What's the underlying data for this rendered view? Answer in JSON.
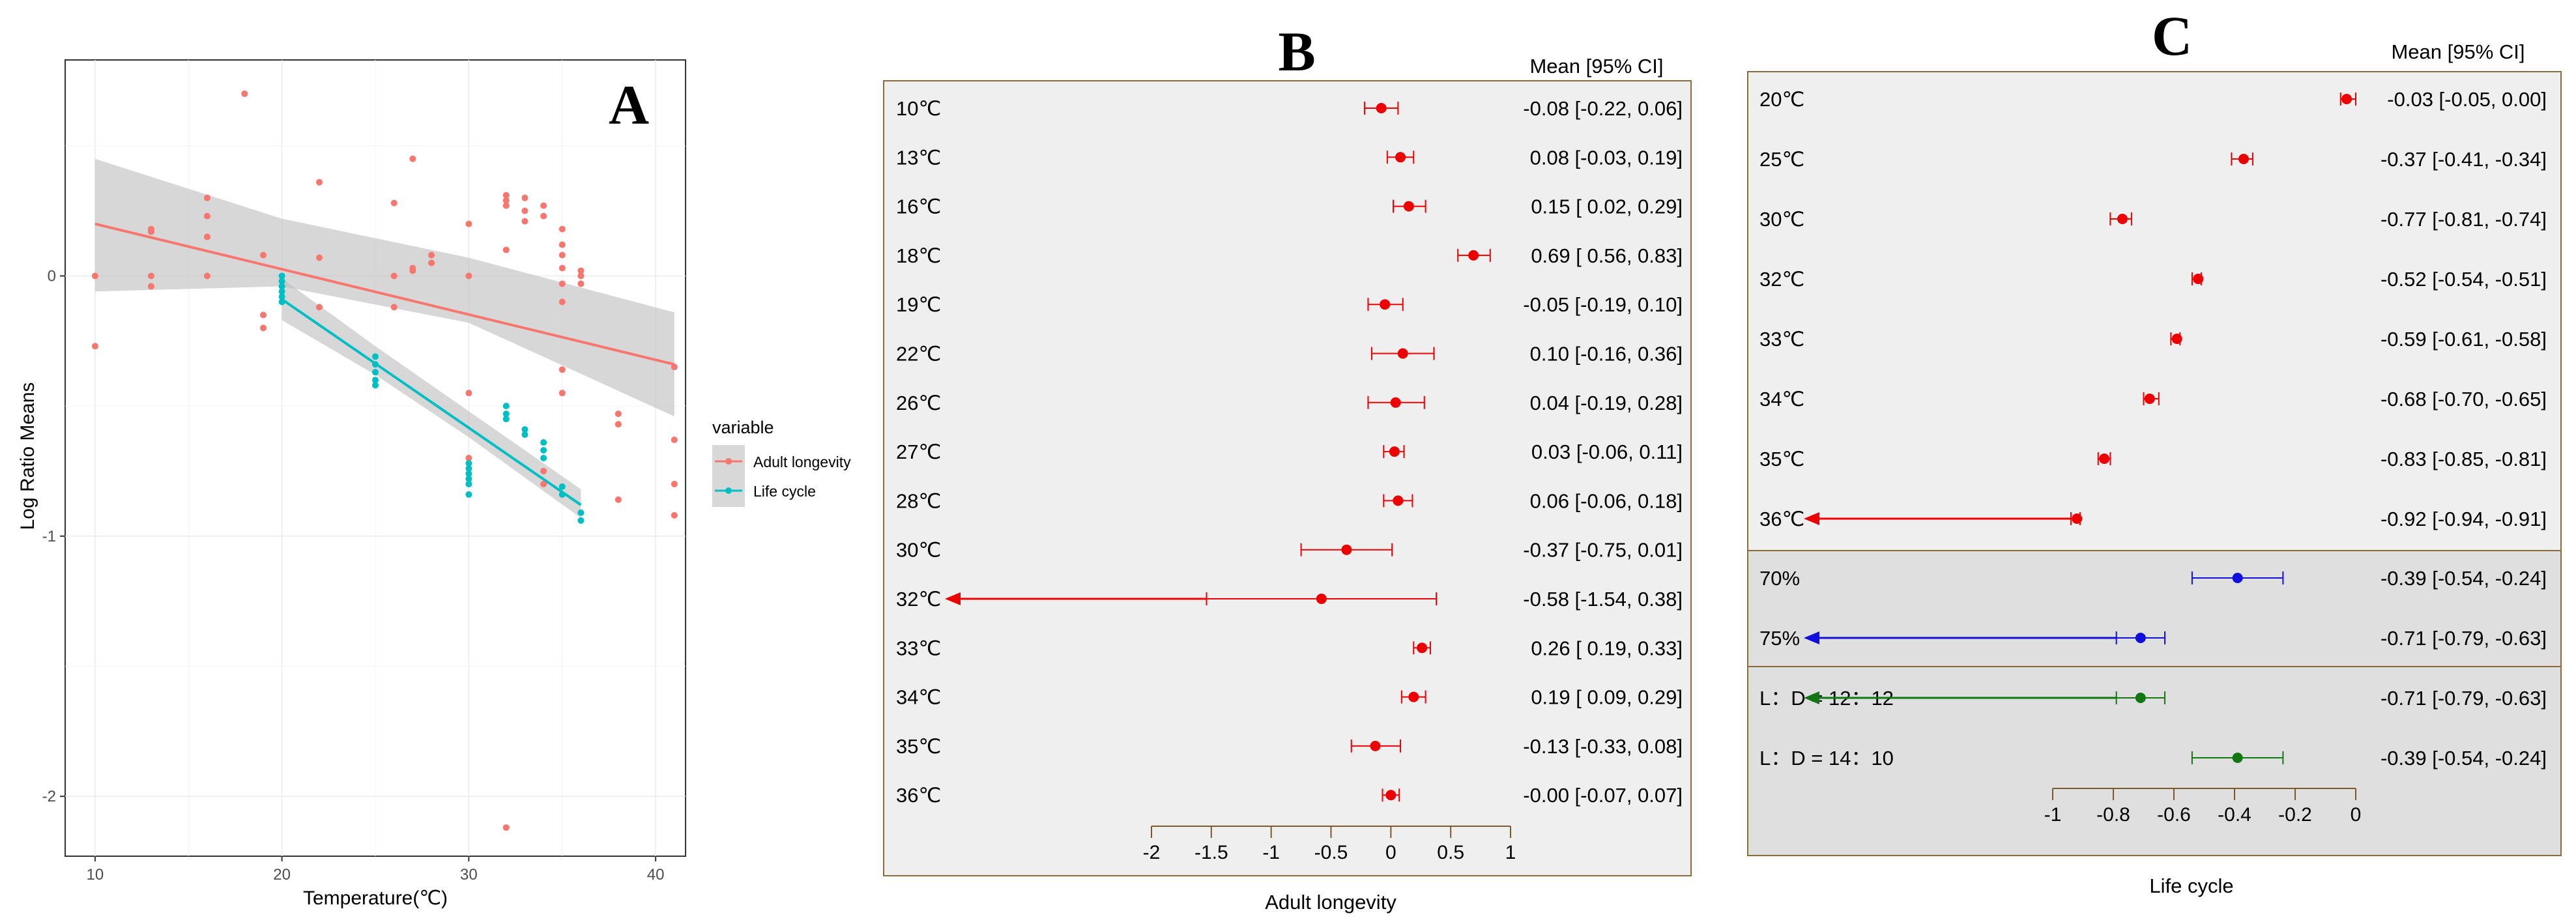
{
  "colors": {
    "adult": "#F8766D",
    "life": "#00BFC4",
    "red": "#EE0000",
    "blue": "#1010DD",
    "green": "#117711",
    "panel_bg": "#EFEFEF",
    "panel_bg2": "#DFDFDF",
    "frame": "#8B6B3A"
  },
  "chart_data": [
    {
      "type": "scatter",
      "panel_label": "A",
      "xlabel": "Temperature(℃)",
      "ylabel": "Log Ratio Means",
      "xlim": [
        8.4,
        41.6
      ],
      "ylim": [
        -2.23,
        0.83
      ],
      "x_ticks": [
        10,
        20,
        30,
        40
      ],
      "x_tick_labels": [
        "10",
        "20",
        "30",
        "40"
      ],
      "y_ticks": [
        0,
        -1,
        -2
      ],
      "y_tick_labels": [
        "0",
        "-1",
        "-2"
      ],
      "grid": true,
      "legend": {
        "title": "variable",
        "placement": "right",
        "entries": [
          "Adult longevity",
          "Life cycle"
        ]
      },
      "series": [
        {
          "name": "Adult longevity",
          "points": [
            [
              10,
              0.0
            ],
            [
              10,
              -0.27
            ],
            [
              13,
              0.18
            ],
            [
              13,
              0.17
            ],
            [
              13,
              -0.04
            ],
            [
              13,
              0.0
            ],
            [
              16,
              0.3
            ],
            [
              16,
              0.23
            ],
            [
              16,
              0.15
            ],
            [
              16,
              0.0
            ],
            [
              18,
              0.7
            ],
            [
              19,
              0.08
            ],
            [
              19,
              -0.15
            ],
            [
              19,
              -0.2
            ],
            [
              22,
              0.36
            ],
            [
              22,
              0.07
            ],
            [
              22,
              -0.12
            ],
            [
              26,
              0.28
            ],
            [
              26,
              0.0
            ],
            [
              26,
              -0.12
            ],
            [
              27,
              0.45
            ],
            [
              27,
              0.03
            ],
            [
              27,
              0.02
            ],
            [
              28,
              0.08
            ],
            [
              28,
              0.05
            ],
            [
              30,
              0.0
            ],
            [
              30,
              -0.45
            ],
            [
              30,
              -0.7
            ],
            [
              30,
              0.2
            ],
            [
              32,
              0.31
            ],
            [
              32,
              0.29
            ],
            [
              32,
              0.27
            ],
            [
              32,
              0.1
            ],
            [
              32,
              -2.12
            ],
            [
              33,
              0.3
            ],
            [
              33,
              0.25
            ],
            [
              33,
              0.21
            ],
            [
              34,
              0.27
            ],
            [
              34,
              0.23
            ],
            [
              34,
              -0.75
            ],
            [
              34,
              -0.8
            ],
            [
              35,
              0.18
            ],
            [
              35,
              0.12
            ],
            [
              35,
              0.08
            ],
            [
              35,
              0.03
            ],
            [
              35,
              -0.03
            ],
            [
              35,
              -0.1
            ],
            [
              35,
              -0.36
            ],
            [
              35,
              -0.45
            ],
            [
              36,
              0.02
            ],
            [
              36,
              0.0
            ],
            [
              36,
              -0.03
            ],
            [
              38,
              -0.53
            ],
            [
              38,
              -0.57
            ],
            [
              38,
              -0.86
            ],
            [
              41,
              -0.63
            ],
            [
              41,
              -0.8
            ],
            [
              41,
              -0.92
            ],
            [
              41,
              -0.35
            ]
          ],
          "trend": [
            [
              10,
              0.2
            ],
            [
              41,
              -0.34
            ]
          ],
          "ci_band": {
            "x": [
              10,
              20,
              30,
              41
            ],
            "lower": [
              -0.06,
              -0.04,
              -0.18,
              -0.54
            ],
            "upper": [
              0.45,
              0.22,
              0.07,
              -0.14
            ]
          }
        },
        {
          "name": "Life cycle",
          "points": [
            [
              20,
              0.0
            ],
            [
              20,
              -0.02
            ],
            [
              20,
              -0.04
            ],
            [
              20,
              -0.06
            ],
            [
              20,
              -0.08
            ],
            [
              20,
              -0.1
            ],
            [
              25,
              -0.31
            ],
            [
              25,
              -0.34
            ],
            [
              25,
              -0.37
            ],
            [
              25,
              -0.4
            ],
            [
              25,
              -0.42
            ],
            [
              30,
              -0.72
            ],
            [
              30,
              -0.74
            ],
            [
              30,
              -0.76
            ],
            [
              30,
              -0.78
            ],
            [
              30,
              -0.8
            ],
            [
              30,
              -0.84
            ],
            [
              32,
              -0.5
            ],
            [
              32,
              -0.53
            ],
            [
              32,
              -0.55
            ],
            [
              33,
              -0.59
            ],
            [
              33,
              -0.61
            ],
            [
              34,
              -0.64
            ],
            [
              34,
              -0.67
            ],
            [
              34,
              -0.7
            ],
            [
              35,
              -0.81
            ],
            [
              35,
              -0.84
            ],
            [
              36,
              -0.91
            ],
            [
              36,
              -0.94
            ]
          ],
          "trend": [
            [
              20,
              -0.09
            ],
            [
              36,
              -0.88
            ]
          ],
          "ci_band": {
            "x": [
              20,
              25,
              30,
              36
            ],
            "lower": [
              -0.17,
              -0.38,
              -0.62,
              -0.93
            ],
            "upper": [
              -0.01,
              -0.27,
              -0.52,
              -0.82
            ]
          }
        }
      ]
    },
    {
      "type": "forest",
      "panel_label": "B",
      "xlabel": "Adult longevity",
      "column_header": "Mean [95% CI]",
      "xlim": [
        -2,
        1
      ],
      "x_ticks": [
        -2,
        -1.5,
        -1,
        -0.5,
        0,
        0.5,
        1
      ],
      "x_tick_labels": [
        "-2",
        "-1.5",
        "-1",
        "-0.5",
        "0",
        "0.5",
        "1"
      ],
      "rows": [
        {
          "label": "10℃",
          "mean": -0.08,
          "lo": -0.22,
          "hi": 0.06,
          "ci_text": "-0.08 [-0.22, 0.06]"
        },
        {
          "label": "13℃",
          "mean": 0.08,
          "lo": -0.03,
          "hi": 0.19,
          "ci_text": "0.08 [-0.03, 0.19]"
        },
        {
          "label": "16℃",
          "mean": 0.15,
          "lo": 0.02,
          "hi": 0.29,
          "ci_text": "0.15 [ 0.02, 0.29]"
        },
        {
          "label": "18℃",
          "mean": 0.69,
          "lo": 0.56,
          "hi": 0.83,
          "ci_text": "0.69 [ 0.56, 0.83]"
        },
        {
          "label": "19℃",
          "mean": -0.05,
          "lo": -0.19,
          "hi": 0.1,
          "ci_text": "-0.05 [-0.19, 0.10]"
        },
        {
          "label": "22℃",
          "mean": 0.1,
          "lo": -0.16,
          "hi": 0.36,
          "ci_text": "0.10 [-0.16, 0.36]"
        },
        {
          "label": "26℃",
          "mean": 0.04,
          "lo": -0.19,
          "hi": 0.28,
          "ci_text": "0.04 [-0.19, 0.28]"
        },
        {
          "label": "27℃",
          "mean": 0.03,
          "lo": -0.06,
          "hi": 0.11,
          "ci_text": "0.03 [-0.06, 0.11]"
        },
        {
          "label": "28℃",
          "mean": 0.06,
          "lo": -0.06,
          "hi": 0.18,
          "ci_text": "0.06 [-0.06, 0.18]"
        },
        {
          "label": "30℃",
          "mean": -0.37,
          "lo": -0.75,
          "hi": 0.01,
          "ci_text": "-0.37 [-0.75, 0.01]"
        },
        {
          "label": "32℃",
          "mean": -0.58,
          "lo": -1.54,
          "hi": 0.38,
          "ci_text": "-0.58 [-1.54, 0.38]",
          "arrow_left": true
        },
        {
          "label": "33℃",
          "mean": 0.26,
          "lo": 0.19,
          "hi": 0.33,
          "ci_text": "0.26 [ 0.19, 0.33]"
        },
        {
          "label": "34℃",
          "mean": 0.19,
          "lo": 0.09,
          "hi": 0.29,
          "ci_text": "0.19 [ 0.09, 0.29]"
        },
        {
          "label": "35℃",
          "mean": -0.13,
          "lo": -0.33,
          "hi": 0.08,
          "ci_text": "-0.13 [-0.33, 0.08]"
        },
        {
          "label": "36℃",
          "mean": -0.0,
          "lo": -0.07,
          "hi": 0.07,
          "ci_text": "-0.00 [-0.07, 0.07]"
        }
      ]
    },
    {
      "type": "forest",
      "panel_label": "C",
      "xlabel": "Life cycle",
      "column_header": "Mean [95% CI]",
      "xlim": [
        -1,
        0
      ],
      "x_ticks": [
        -1,
        -0.8,
        -0.6,
        -0.4,
        -0.2,
        0
      ],
      "x_tick_labels": [
        "-1",
        "-0.8",
        "-0.6",
        "-0.4",
        "-0.2",
        "0"
      ],
      "groups": [
        {
          "color": "red",
          "rows": [
            {
              "label": "20℃",
              "mean": -0.03,
              "lo": -0.05,
              "hi": 0.0,
              "ci_text": "-0.03 [-0.05,  0.00]"
            },
            {
              "label": "25℃",
              "mean": -0.37,
              "lo": -0.41,
              "hi": -0.34,
              "ci_text": "-0.37 [-0.41, -0.34]"
            },
            {
              "label": "30℃",
              "mean": -0.77,
              "lo": -0.81,
              "hi": -0.74,
              "ci_text": "-0.77 [-0.81, -0.74]"
            },
            {
              "label": "32℃",
              "mean": -0.52,
              "lo": -0.54,
              "hi": -0.51,
              "ci_text": "-0.52 [-0.54, -0.51]"
            },
            {
              "label": "33℃",
              "mean": -0.59,
              "lo": -0.61,
              "hi": -0.58,
              "ci_text": "-0.59 [-0.61, -0.58]"
            },
            {
              "label": "34℃",
              "mean": -0.68,
              "lo": -0.7,
              "hi": -0.65,
              "ci_text": "-0.68 [-0.70, -0.65]"
            },
            {
              "label": "35℃",
              "mean": -0.83,
              "lo": -0.85,
              "hi": -0.81,
              "ci_text": "-0.83 [-0.85, -0.81]"
            },
            {
              "label": "36℃",
              "mean": -0.92,
              "lo": -0.94,
              "hi": -0.91,
              "ci_text": "-0.92 [-0.94, -0.91]",
              "arrow_left": true
            }
          ]
        },
        {
          "color": "blue",
          "rows": [
            {
              "label": "70%",
              "mean": -0.39,
              "lo": -0.54,
              "hi": -0.24,
              "ci_text": "-0.39 [-0.54, -0.24]"
            },
            {
              "label": "75%",
              "mean": -0.71,
              "lo": -0.79,
              "hi": -0.63,
              "ci_text": "-0.71 [-0.79, -0.63]",
              "arrow_left": true
            }
          ]
        },
        {
          "color": "green",
          "rows": [
            {
              "label": "L：D = 12：12",
              "mean": -0.71,
              "lo": -0.79,
              "hi": -0.63,
              "ci_text": "-0.71 [-0.79, -0.63]",
              "arrow_left": true
            },
            {
              "label": "L：D = 14：10",
              "mean": -0.39,
              "lo": -0.54,
              "hi": -0.24,
              "ci_text": "-0.39 [-0.54, -0.24]"
            }
          ]
        }
      ]
    }
  ]
}
